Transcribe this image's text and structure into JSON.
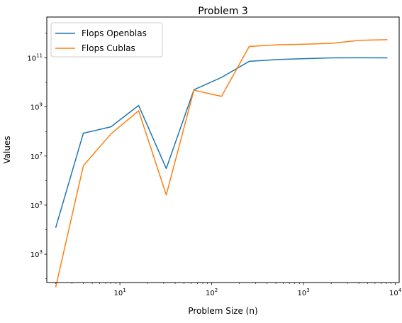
{
  "chart_data": {
    "type": "line",
    "title": "Problem 3",
    "xlabel": "Problem Size (n)",
    "ylabel": "Values",
    "xscale": "log",
    "yscale": "log",
    "xlim": [
      1.6,
      11000
    ],
    "ylim": [
      70,
      4600000000000.0
    ],
    "grid": false,
    "legend": "top-left",
    "x_ticks": [
      {
        "value": 10,
        "base": "10",
        "exp": "1"
      },
      {
        "value": 100,
        "base": "10",
        "exp": "2"
      },
      {
        "value": 1000,
        "base": "10",
        "exp": "3"
      },
      {
        "value": 10000,
        "base": "10",
        "exp": "4"
      }
    ],
    "y_ticks": [
      {
        "value": 1000,
        "base": "10",
        "exp": "3"
      },
      {
        "value": 100000,
        "base": "10",
        "exp": "5"
      },
      {
        "value": 10000000,
        "base": "10",
        "exp": "7"
      },
      {
        "value": 1000000000,
        "base": "10",
        "exp": "9"
      },
      {
        "value": 100000000000,
        "base": "10",
        "exp": "11"
      }
    ],
    "x": [
      2,
      4,
      8,
      16,
      32,
      64,
      128,
      256,
      512,
      1024,
      2048,
      4096,
      8192
    ],
    "series": [
      {
        "name": "Flops Openblas",
        "color": "#1f77b4",
        "values": [
          12000,
          85000000,
          155000000,
          1150000000,
          3100000,
          5000000000,
          16000000000,
          72000000000,
          85000000000,
          93000000000,
          100000000000,
          101000000000,
          100000000000
        ]
      },
      {
        "name": "Flops Cublas",
        "color": "#ff7f0e",
        "values": [
          45,
          4000000,
          80000000,
          700000000,
          260000,
          4800000000,
          2700000000,
          290000000000,
          340000000000,
          360000000000,
          390000000000,
          520000000000,
          550000000000
        ]
      }
    ]
  }
}
